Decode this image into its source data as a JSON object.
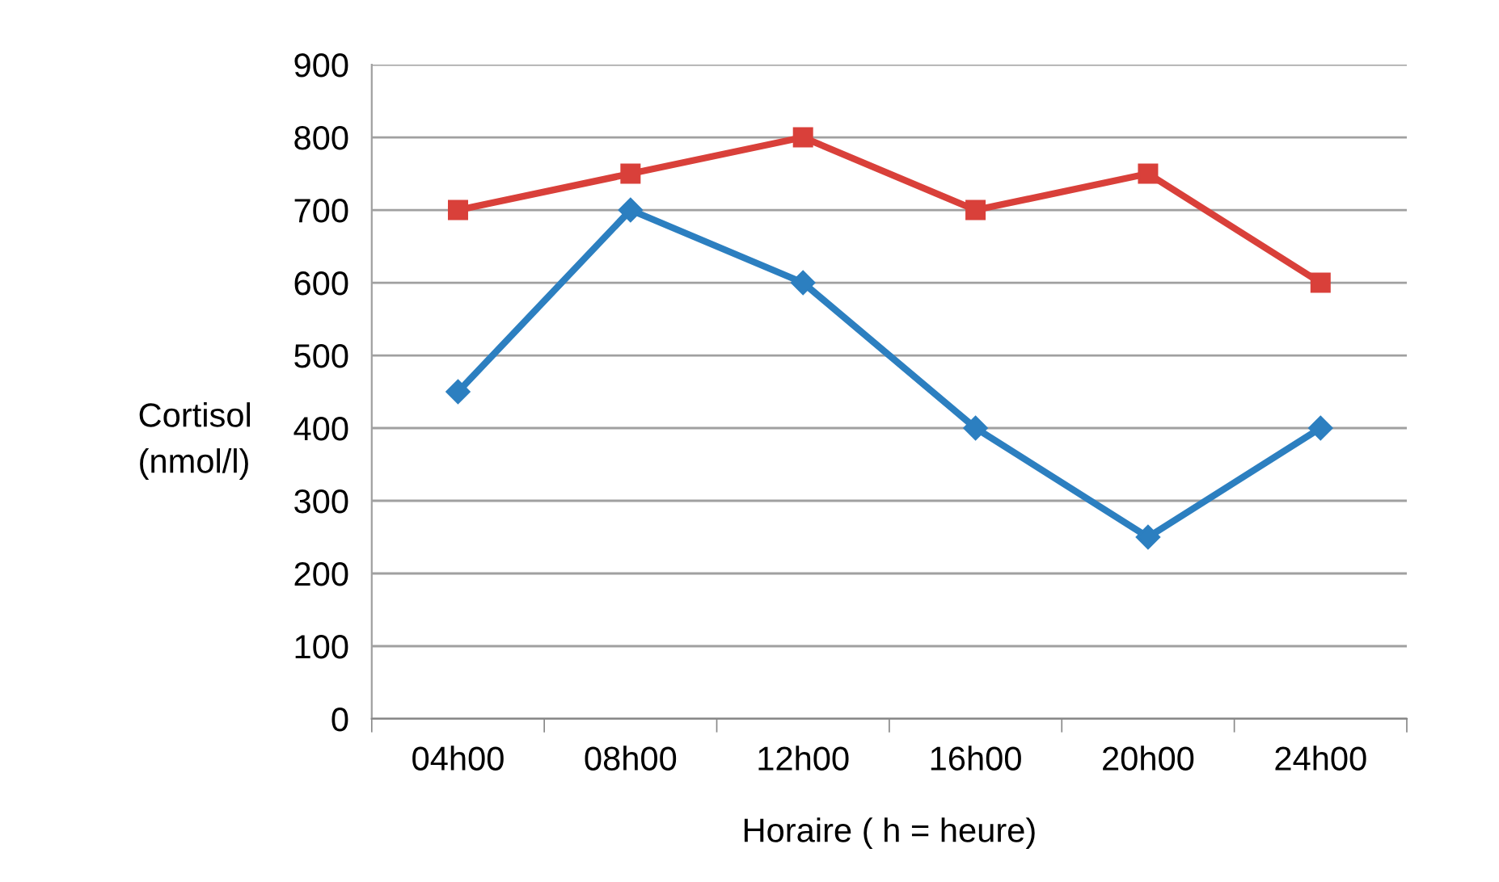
{
  "chart_data": {
    "type": "line",
    "xlabel": "Horaire ( h = heure)",
    "ylabel": "Cortisol\n(nmol/l)",
    "categories": [
      "04h00",
      "08h00",
      "12h00",
      "16h00",
      "20h00",
      "24h00"
    ],
    "series": [
      {
        "color": "#d9403a",
        "marker": "square",
        "values": [
          700,
          750,
          800,
          700,
          750,
          600
        ]
      },
      {
        "color": "#2c7fc0",
        "marker": "diamond",
        "values": [
          450,
          700,
          600,
          400,
          250,
          400
        ]
      }
    ],
    "ylim": [
      0,
      900
    ],
    "yticks": [
      0,
      100,
      200,
      300,
      400,
      500,
      600,
      700,
      800,
      900
    ],
    "grid": "y",
    "line_style": "solid"
  }
}
